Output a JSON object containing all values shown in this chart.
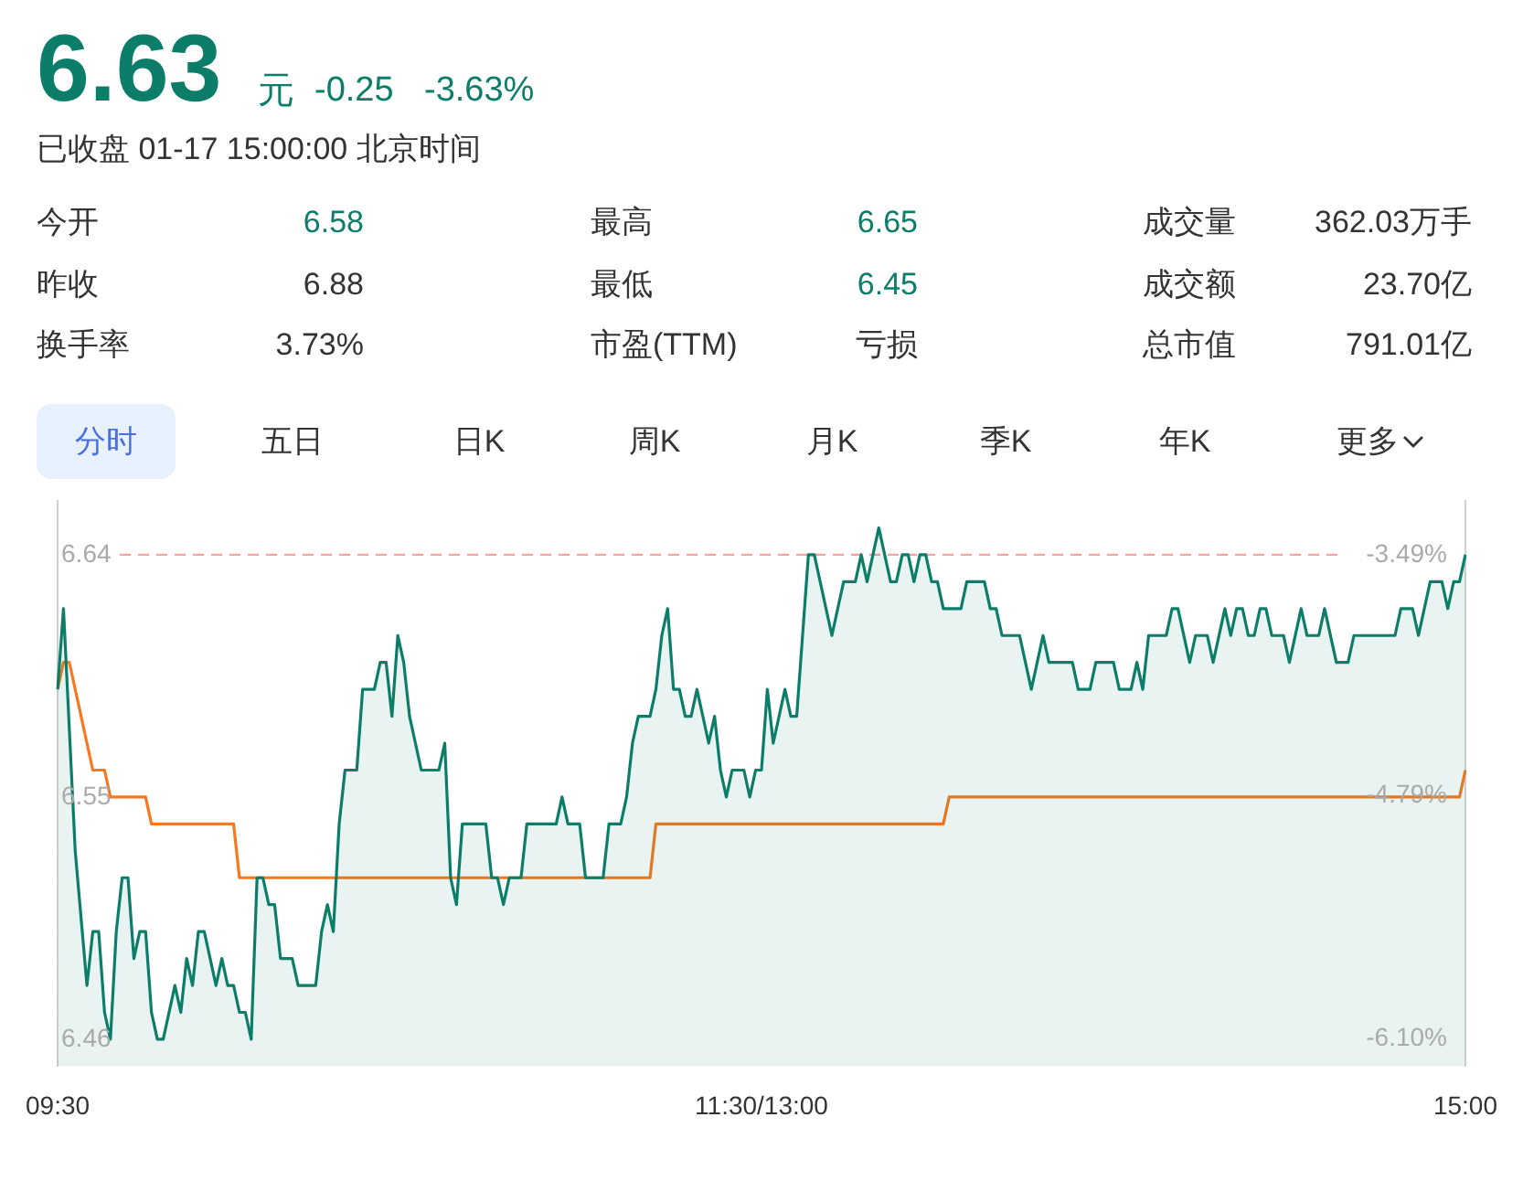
{
  "chart_data": {
    "type": "line",
    "annotations": [
      "6.63",
      "元",
      "-0.25",
      "-3.63%",
      "已收盘 01-17 15:00:00 北京时间",
      "今开",
      "6.58",
      "最高",
      "6.65",
      "成交量",
      "362.03万手",
      "昨收",
      "6.88",
      "最低",
      "6.45",
      "成交额",
      "23.70亿",
      "换手率",
      "3.73%",
      "市盈(TTM)",
      "亏损",
      "总市值",
      "791.01亿",
      "分时",
      "五日",
      "日K",
      "周K",
      "月K",
      "季K",
      "年K",
      "更多"
    ],
    "categories": [
      "09:30",
      null,
      null,
      null,
      null,
      null,
      null,
      null,
      null,
      null,
      null,
      null,
      null,
      null,
      null,
      null,
      null,
      null,
      null,
      null,
      null,
      null,
      null,
      null,
      null,
      null,
      null,
      null,
      null,
      null,
      null,
      null,
      null,
      null,
      null,
      null,
      null,
      null,
      null,
      null,
      null,
      null,
      null,
      null,
      null,
      null,
      null,
      null,
      null,
      null,
      null,
      null,
      null,
      null,
      null,
      null,
      null,
      null,
      null,
      null,
      null,
      null,
      null,
      null,
      null,
      null,
      null,
      null,
      null,
      null,
      null,
      null,
      null,
      null,
      null,
      null,
      null,
      null,
      null,
      null,
      null,
      null,
      null,
      null,
      null,
      null,
      null,
      null,
      null,
      null,
      null,
      null,
      null,
      null,
      null,
      null,
      null,
      null,
      null,
      null,
      null,
      null,
      null,
      null,
      null,
      null,
      null,
      null,
      null,
      null,
      null,
      null,
      null,
      null,
      null,
      null,
      null,
      null,
      null,
      null,
      "11:30/13:00",
      null,
      null,
      null,
      null,
      null,
      null,
      null,
      null,
      null,
      null,
      null,
      null,
      null,
      null,
      null,
      null,
      null,
      null,
      null,
      null,
      null,
      null,
      null,
      null,
      null,
      null,
      null,
      null,
      null,
      null,
      null,
      null,
      null,
      null,
      null,
      null,
      null,
      null,
      null,
      null,
      null,
      null,
      null,
      null,
      null,
      null,
      null,
      null,
      null,
      null,
      null,
      null,
      null,
      null,
      null,
      null,
      null,
      null,
      null,
      null,
      null,
      null,
      null,
      null,
      null,
      null,
      null,
      null,
      null,
      null,
      null,
      null,
      null,
      null,
      null,
      null,
      null,
      null,
      null,
      null,
      null,
      null,
      null,
      null,
      null,
      null,
      null,
      null,
      null,
      null,
      null,
      null,
      null,
      null,
      null,
      null,
      null,
      null,
      null,
      null,
      null,
      null,
      null,
      null,
      null,
      null,
      null,
      null,
      null,
      null,
      null,
      null,
      null,
      null,
      null,
      null,
      null,
      null,
      null,
      "15:00"
    ],
    "ylim": [
      6.45,
      6.66
    ],
    "yticks": [
      6.64,
      6.55,
      6.46
    ],
    "y2lim": [
      -6.25,
      -3.2
    ],
    "y2ticks": [
      {
        "value": -3.49,
        "label": "-3.49%"
      },
      {
        "value": -4.79,
        "label": "-4.79%"
      },
      {
        "value": -6.1,
        "label": "-6.10%"
      }
    ],
    "ref_lines": [
      {
        "axis": "y",
        "value": 6.64,
        "color": "#f5a3a3",
        "line_style": "dashed"
      }
    ],
    "grid": false,
    "legend": false,
    "marker": "none",
    "series": [
      {
        "type": "area",
        "color": "#0b7d68",
        "values": [
          6.59,
          6.62,
          null,
          6.53,
          null,
          6.48,
          6.5,
          6.5,
          6.47,
          6.46,
          6.5,
          6.52,
          6.52,
          6.49,
          6.5,
          6.5,
          6.47,
          6.46,
          6.46,
          null,
          6.48,
          6.47,
          6.49,
          6.48,
          6.5,
          6.5,
          null,
          6.48,
          6.49,
          6.48,
          6.48,
          6.47,
          6.47,
          6.46,
          6.52,
          6.52,
          6.51,
          6.51,
          6.49,
          null,
          6.49,
          6.48,
          null,
          null,
          6.48,
          6.5,
          6.51,
          6.5,
          6.54,
          6.56,
          null,
          6.56,
          6.59,
          null,
          6.59,
          6.6,
          6.6,
          6.58,
          6.61,
          6.6,
          6.58,
          null,
          6.56,
          null,
          null,
          6.56,
          6.57,
          6.52,
          6.51,
          6.54,
          null,
          null,
          null,
          6.54,
          6.52,
          6.52,
          6.51,
          6.52,
          null,
          6.52,
          6.54,
          null,
          null,
          null,
          null,
          6.54,
          6.55,
          6.54,
          null,
          6.54,
          6.52,
          null,
          null,
          6.52,
          6.54,
          null,
          6.54,
          6.55,
          6.57,
          6.58,
          null,
          6.58,
          6.59,
          6.61,
          6.62,
          6.59,
          6.59,
          6.58,
          6.58,
          6.59,
          null,
          6.57,
          6.58,
          6.56,
          6.55,
          6.56,
          null,
          6.56,
          6.55,
          6.56,
          6.56,
          6.59,
          6.57,
          null,
          6.59,
          6.58,
          6.58,
          null,
          6.64,
          6.64,
          null,
          null,
          6.61,
          null,
          6.63,
          null,
          6.63,
          6.64,
          6.63,
          null,
          6.65,
          null,
          6.63,
          6.63,
          6.64,
          6.64,
          6.63,
          6.64,
          6.64,
          6.63,
          6.63,
          6.62,
          null,
          null,
          6.62,
          6.63,
          null,
          null,
          6.63,
          6.62,
          6.62,
          6.61,
          null,
          null,
          6.61,
          null,
          6.59,
          null,
          6.61,
          6.6,
          null,
          null,
          null,
          6.6,
          6.59,
          null,
          6.59,
          6.6,
          null,
          null,
          6.6,
          6.59,
          null,
          6.59,
          6.6,
          6.59,
          6.61,
          null,
          null,
          6.61,
          6.62,
          6.62,
          null,
          6.6,
          6.61,
          null,
          6.61,
          6.6,
          null,
          6.62,
          6.61,
          6.62,
          6.62,
          6.61,
          6.61,
          6.62,
          6.62,
          6.61,
          null,
          6.61,
          6.6,
          null,
          6.62,
          6.61,
          null,
          6.61,
          6.62,
          null,
          6.6,
          null,
          6.6,
          6.61,
          null,
          null,
          null,
          null,
          null,
          null,
          6.61,
          6.62,
          null,
          6.62,
          6.61,
          null,
          6.63,
          null,
          6.63,
          6.62,
          6.63,
          6.63,
          6.64
        ]
      },
      {
        "type": "line",
        "color": "#f47920",
        "values": [
          6.59,
          6.6,
          6.6,
          null,
          null,
          null,
          6.56,
          null,
          6.56,
          6.55,
          null,
          null,
          null,
          null,
          null,
          6.55,
          6.54,
          null,
          null,
          null,
          null,
          null,
          null,
          null,
          null,
          null,
          null,
          null,
          null,
          null,
          6.54,
          6.52,
          null,
          null,
          null,
          null,
          null,
          null,
          null,
          null,
          null,
          null,
          null,
          null,
          null,
          null,
          null,
          null,
          null,
          null,
          null,
          null,
          null,
          null,
          null,
          null,
          null,
          null,
          null,
          null,
          null,
          null,
          null,
          null,
          null,
          null,
          null,
          null,
          null,
          null,
          null,
          null,
          null,
          null,
          null,
          null,
          null,
          null,
          null,
          null,
          null,
          null,
          null,
          null,
          null,
          null,
          null,
          null,
          null,
          null,
          null,
          null,
          null,
          null,
          null,
          null,
          null,
          null,
          null,
          null,
          null,
          6.52,
          6.54,
          null,
          null,
          null,
          null,
          null,
          null,
          null,
          null,
          null,
          null,
          null,
          null,
          null,
          null,
          null,
          null,
          null,
          null,
          null,
          null,
          null,
          null,
          null,
          null,
          null,
          null,
          null,
          null,
          null,
          null,
          null,
          null,
          null,
          null,
          null,
          null,
          null,
          null,
          null,
          null,
          null,
          null,
          null,
          null,
          null,
          null,
          null,
          null,
          6.54,
          6.55,
          null,
          null,
          null,
          null,
          null,
          null,
          null,
          null,
          null,
          null,
          null,
          null,
          null,
          null,
          null,
          null,
          null,
          null,
          null,
          null,
          null,
          null,
          null,
          null,
          null,
          null,
          null,
          null,
          null,
          null,
          null,
          null,
          null,
          null,
          null,
          null,
          null,
          null,
          null,
          null,
          null,
          null,
          null,
          null,
          null,
          null,
          null,
          null,
          null,
          null,
          null,
          null,
          null,
          null,
          null,
          null,
          null,
          null,
          null,
          null,
          null,
          null,
          null,
          null,
          null,
          null,
          null,
          null,
          null,
          null,
          null,
          null,
          null,
          null,
          null,
          null,
          null,
          null,
          null,
          null,
          null,
          null,
          null,
          null,
          null,
          null,
          6.55,
          6.56
        ]
      }
    ]
  }
}
